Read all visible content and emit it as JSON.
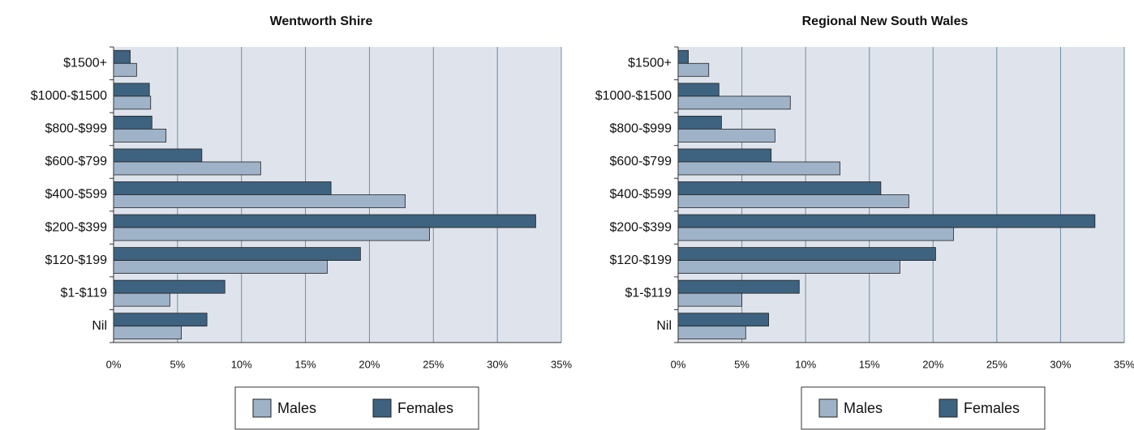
{
  "chart_data": [
    {
      "type": "barh",
      "title": "Wentworth Shire",
      "categories": [
        "$1500+",
        "$1000-$1500",
        "$800-$999",
        "$600-$799",
        "$400-$599",
        "$200-$399",
        "$120-$199",
        "$1-$119",
        "Nil"
      ],
      "series": [
        {
          "name": "Males",
          "color": "#9fb3c8",
          "values": [
            1.8,
            2.9,
            4.1,
            11.5,
            22.8,
            24.7,
            16.7,
            4.4,
            5.3
          ]
        },
        {
          "name": "Females",
          "color": "#3d6380",
          "values": [
            1.3,
            2.8,
            3.0,
            6.9,
            17.0,
            33.0,
            19.3,
            8.7,
            7.3
          ]
        }
      ],
      "xlim": [
        0,
        35
      ],
      "xticks": [
        {
          "value": 0,
          "label": "0%"
        },
        {
          "value": 5,
          "label": "5%"
        },
        {
          "value": 10,
          "label": "10%"
        },
        {
          "value": 15,
          "label": "15%"
        },
        {
          "value": 20,
          "label": "20%"
        },
        {
          "value": 25,
          "label": "25%"
        },
        {
          "value": 30,
          "label": "30%"
        },
        {
          "value": 35,
          "label": "35%"
        }
      ],
      "grid": true
    },
    {
      "type": "barh",
      "title": "Regional New South Wales",
      "categories": [
        "$1500+",
        "$1000-$1500",
        "$800-$999",
        "$600-$799",
        "$400-$599",
        "$200-$399",
        "$120-$199",
        "$1-$119",
        "Nil"
      ],
      "series": [
        {
          "name": "Males",
          "color": "#9fb3c8",
          "values": [
            2.4,
            8.8,
            7.6,
            12.7,
            18.1,
            21.6,
            17.4,
            5.0,
            5.3
          ]
        },
        {
          "name": "Females",
          "color": "#3d6380",
          "values": [
            0.8,
            3.2,
            3.4,
            7.3,
            15.9,
            32.7,
            20.2,
            9.5,
            7.1
          ]
        }
      ],
      "xlim": [
        0,
        35
      ],
      "xticks": [
        {
          "value": 0,
          "label": "0%"
        },
        {
          "value": 5,
          "label": "5%"
        },
        {
          "value": 10,
          "label": "10%"
        },
        {
          "value": 15,
          "label": "15%"
        },
        {
          "value": 20,
          "label": "20%"
        },
        {
          "value": 25,
          "label": "25%"
        },
        {
          "value": 30,
          "label": "30%"
        },
        {
          "value": 35,
          "label": "35%"
        }
      ],
      "grid": true
    }
  ]
}
